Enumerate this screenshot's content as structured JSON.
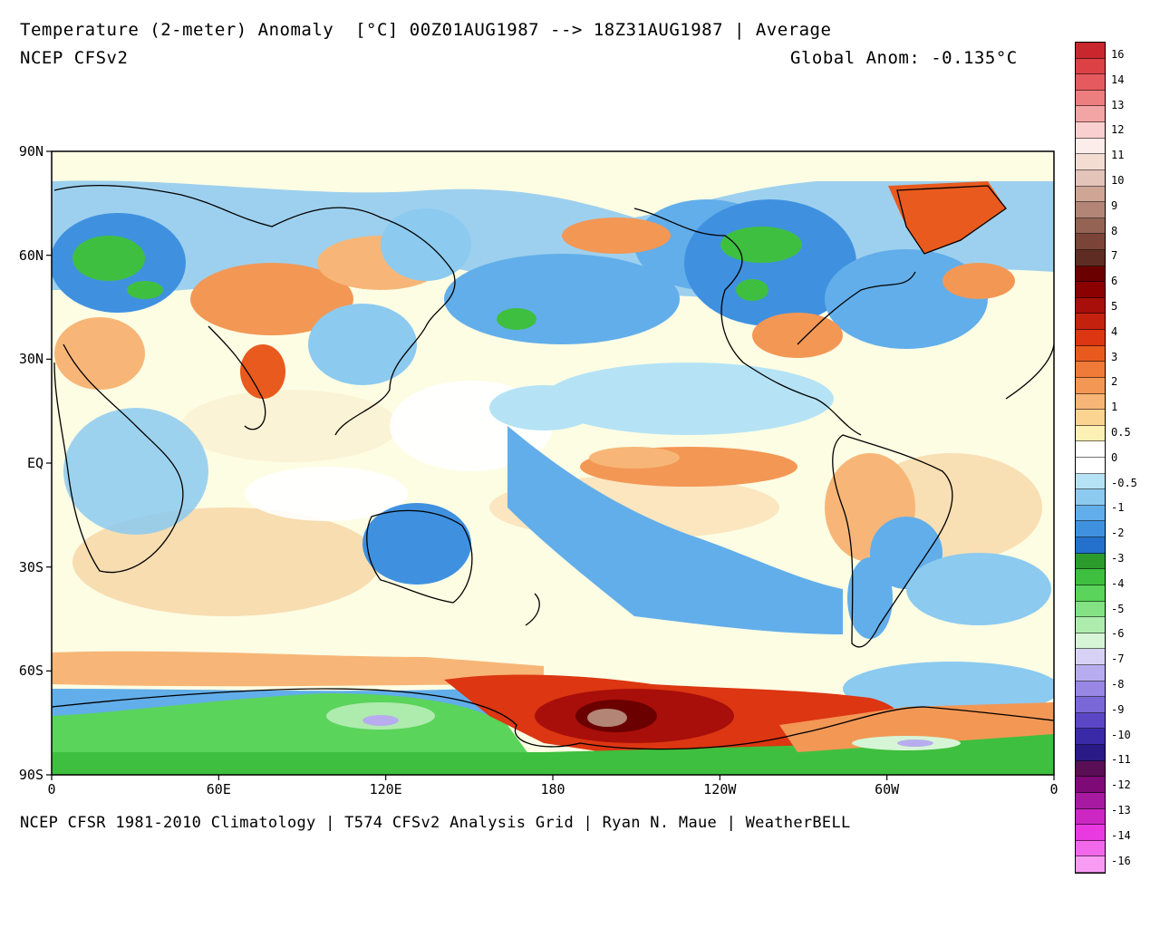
{
  "header": {
    "title": "Temperature (2-meter) Anomaly  [°C] 00Z01AUG1987 --> 18Z31AUG1987 | Average",
    "model": "NCEP CFSv2",
    "global_anomaly": "Global Anom: -0.135°C"
  },
  "footer": "NCEP CFSR 1981-2010 Climatology | T574 CFSv2 Analysis Grid | Ryan N. Maue | WeatherBELL",
  "axes": {
    "y_ticks": [
      "90N",
      "60N",
      "30N",
      "EQ",
      "30S",
      "60S",
      "90S"
    ],
    "x_ticks": [
      "0",
      "60E",
      "120E",
      "180",
      "120W",
      "60W",
      "0"
    ]
  },
  "colorbar": {
    "labels": [
      "16",
      "14",
      "13",
      "12",
      "11",
      "10",
      "9",
      "8",
      "7",
      "6",
      "5",
      "4",
      "3",
      "2",
      "1",
      "0.5",
      "0",
      "-0.5",
      "-1",
      "-2",
      "-3",
      "-4",
      "-5",
      "-6",
      "-7",
      "-8",
      "-9",
      "-10",
      "-11",
      "-12",
      "-13",
      "-14",
      "-16"
    ],
    "colors": [
      "#c8282d",
      "#dc4145",
      "#e45a5e",
      "#ec7e80",
      "#f3a4a5",
      "#f9d0cf",
      "#fcecea",
      "#f3dcd2",
      "#e4c3b8",
      "#cfa596",
      "#b38576",
      "#946354",
      "#7a4538",
      "#5e2c22",
      "#6b0000",
      "#8b0000",
      "#a80f0a",
      "#c5210f",
      "#dc3612",
      "#e95a1e",
      "#f07a37",
      "#f39755",
      "#f7b677",
      "#fbd492",
      "#fdf0b4",
      "#ffffff",
      "#ffffff",
      "#b5e3f5",
      "#8ccaf0",
      "#62aeea",
      "#3f91e0",
      "#2471cc",
      "#2b9b2b",
      "#3fbf3f",
      "#5ad45a",
      "#84e284",
      "#aeecae",
      "#d6f5d6",
      "#d7d2f5",
      "#b7adee",
      "#9887e3",
      "#7a68d8",
      "#5b47c6",
      "#3a2aa8",
      "#2a1a85",
      "#5a0e56",
      "#7e0a78",
      "#a71aa0",
      "#cc26c3",
      "#e83ae0",
      "#f268ea",
      "#f79cf2"
    ]
  }
}
